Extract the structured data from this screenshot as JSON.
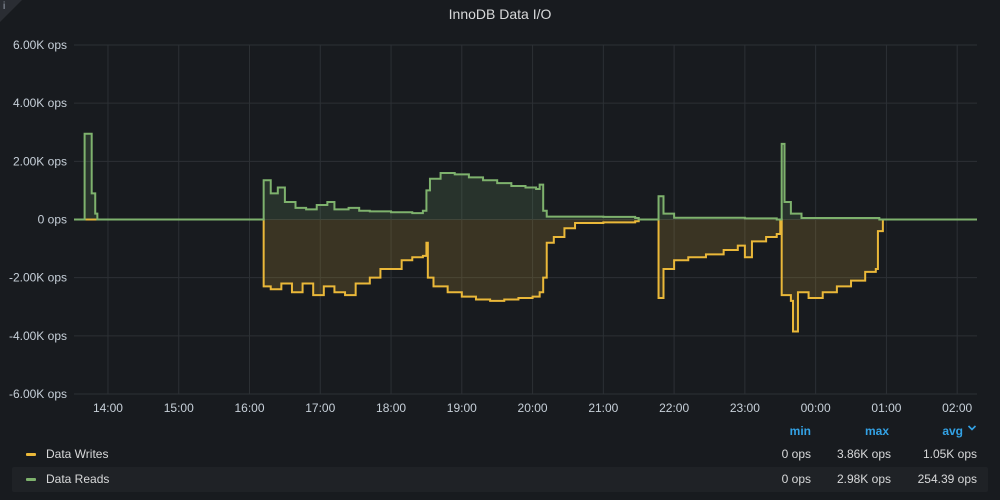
{
  "panel": {
    "title": "InnoDB Data I/O",
    "info_icon": "i"
  },
  "colors": {
    "writes": "#eab839",
    "reads": "#7eb26d",
    "grid": "#2c3035",
    "axis_text": "#c7d0d9",
    "legend_header": "#33a2e5"
  },
  "chart_data": {
    "type": "line",
    "title": "InnoDB Data I/O",
    "ylim": [
      -6000,
      6000
    ],
    "y_ticks": [
      "6.00K ops",
      "4.00K ops",
      "2.00K ops",
      "0 ops",
      "-2.00K ops",
      "-4.00K ops",
      "-6.00K ops"
    ],
    "x_ticks": [
      "14:00",
      "15:00",
      "16:00",
      "17:00",
      "18:00",
      "19:00",
      "20:00",
      "21:00",
      "22:00",
      "23:00",
      "00:00",
      "01:00",
      "02:00"
    ],
    "x_unit": "hours since 14:00",
    "xlim": [
      -0.48,
      12.28
    ],
    "grid": true,
    "legend_placement": "bottom",
    "series": [
      {
        "name": "Data Writes",
        "color": "#eab839",
        "fill": true,
        "values": [
          [
            -0.48,
            0
          ],
          [
            2.17,
            0
          ],
          [
            2.2,
            -2300
          ],
          [
            2.3,
            -2400
          ],
          [
            2.45,
            -2200
          ],
          [
            2.6,
            -2500
          ],
          [
            2.75,
            -2200
          ],
          [
            2.9,
            -2600
          ],
          [
            3.05,
            -2300
          ],
          [
            3.2,
            -2500
          ],
          [
            3.35,
            -2600
          ],
          [
            3.5,
            -2200
          ],
          [
            3.7,
            -2000
          ],
          [
            3.85,
            -1700
          ],
          [
            4.0,
            -1700
          ],
          [
            4.15,
            -1400
          ],
          [
            4.3,
            -1300
          ],
          [
            4.45,
            -1250
          ],
          [
            4.5,
            -800
          ],
          [
            4.52,
            -2000
          ],
          [
            4.6,
            -2300
          ],
          [
            4.8,
            -2500
          ],
          [
            5.0,
            -2650
          ],
          [
            5.2,
            -2750
          ],
          [
            5.4,
            -2800
          ],
          [
            5.6,
            -2750
          ],
          [
            5.8,
            -2700
          ],
          [
            6.0,
            -2650
          ],
          [
            6.1,
            -2500
          ],
          [
            6.15,
            -2000
          ],
          [
            6.2,
            -800
          ],
          [
            6.3,
            -600
          ],
          [
            6.45,
            -300
          ],
          [
            6.6,
            -120
          ],
          [
            7.0,
            -100
          ],
          [
            7.45,
            -60
          ],
          [
            7.5,
            0
          ],
          [
            7.75,
            0
          ],
          [
            7.78,
            -2700
          ],
          [
            7.85,
            -1700
          ],
          [
            8.0,
            -1400
          ],
          [
            8.2,
            -1300
          ],
          [
            8.45,
            -1200
          ],
          [
            8.7,
            -1050
          ],
          [
            8.9,
            -900
          ],
          [
            9.0,
            -1300
          ],
          [
            9.1,
            -750
          ],
          [
            9.3,
            -600
          ],
          [
            9.45,
            -500
          ],
          [
            9.5,
            0
          ],
          [
            9.52,
            -2600
          ],
          [
            9.65,
            -2800
          ],
          [
            9.68,
            -3850
          ],
          [
            9.75,
            -2500
          ],
          [
            9.9,
            -2700
          ],
          [
            10.1,
            -2500
          ],
          [
            10.3,
            -2300
          ],
          [
            10.5,
            -2100
          ],
          [
            10.7,
            -1800
          ],
          [
            10.85,
            -1700
          ],
          [
            10.88,
            -400
          ],
          [
            10.95,
            0
          ],
          [
            12.28,
            0
          ]
        ]
      },
      {
        "name": "Data Reads",
        "color": "#7eb26d",
        "fill": true,
        "values": [
          [
            -0.48,
            0
          ],
          [
            -0.35,
            0
          ],
          [
            -0.33,
            2950
          ],
          [
            -0.25,
            2950
          ],
          [
            -0.23,
            900
          ],
          [
            -0.18,
            200
          ],
          [
            -0.15,
            0
          ],
          [
            2.17,
            0
          ],
          [
            2.2,
            1350
          ],
          [
            2.3,
            900
          ],
          [
            2.4,
            1100
          ],
          [
            2.5,
            600
          ],
          [
            2.65,
            400
          ],
          [
            2.8,
            350
          ],
          [
            2.95,
            500
          ],
          [
            3.1,
            600
          ],
          [
            3.2,
            350
          ],
          [
            3.4,
            400
          ],
          [
            3.55,
            300
          ],
          [
            3.7,
            280
          ],
          [
            4.0,
            250
          ],
          [
            4.3,
            220
          ],
          [
            4.45,
            300
          ],
          [
            4.5,
            1000
          ],
          [
            4.55,
            1400
          ],
          [
            4.7,
            1600
          ],
          [
            4.9,
            1550
          ],
          [
            5.1,
            1450
          ],
          [
            5.3,
            1350
          ],
          [
            5.5,
            1250
          ],
          [
            5.7,
            1150
          ],
          [
            5.9,
            1100
          ],
          [
            6.05,
            1050
          ],
          [
            6.1,
            1200
          ],
          [
            6.15,
            300
          ],
          [
            6.2,
            100
          ],
          [
            7.0,
            90
          ],
          [
            7.45,
            50
          ],
          [
            7.5,
            0
          ],
          [
            7.75,
            0
          ],
          [
            7.78,
            800
          ],
          [
            7.85,
            200
          ],
          [
            8.0,
            60
          ],
          [
            9.0,
            40
          ],
          [
            9.45,
            0
          ],
          [
            9.52,
            2600
          ],
          [
            9.56,
            600
          ],
          [
            9.65,
            200
          ],
          [
            9.8,
            50
          ],
          [
            10.9,
            0
          ],
          [
            12.28,
            0
          ]
        ]
      }
    ]
  },
  "legend": {
    "headers": {
      "min": "min",
      "max": "max",
      "avg": "avg"
    },
    "sort_icon": "chevron-down-icon",
    "rows": [
      {
        "name": "Data Writes",
        "color": "#eab839",
        "min": "0 ops",
        "max": "3.86K ops",
        "avg": "1.05K ops"
      },
      {
        "name": "Data Reads",
        "color": "#7eb26d",
        "min": "0 ops",
        "max": "2.98K ops",
        "avg": "254.39 ops"
      }
    ]
  }
}
